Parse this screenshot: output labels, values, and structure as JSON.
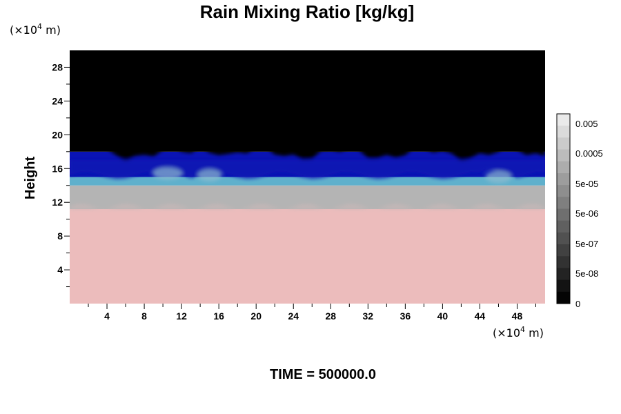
{
  "chart_data": {
    "type": "heatmap",
    "title": "Rain Mixing Ratio [kg/kg]",
    "ylabel": "Height",
    "y_unit": "(×10",
    "x_unit": "(×10",
    "unit_exponent": "4",
    "unit_suffix": " m)",
    "xlim": [
      0,
      51
    ],
    "ylim": [
      0,
      30
    ],
    "x_ticks": [
      "4",
      "8",
      "12",
      "16",
      "20",
      "24",
      "28",
      "32",
      "36",
      "40",
      "44",
      "48"
    ],
    "y_ticks": [
      "4",
      "8",
      "12",
      "16",
      "20",
      "24",
      "28"
    ],
    "x_tick_values": [
      4,
      8,
      12,
      16,
      20,
      24,
      28,
      32,
      36,
      40,
      44,
      48
    ],
    "y_tick_values": [
      4,
      8,
      12,
      16,
      20,
      24,
      28
    ],
    "layers": [
      {
        "region": "lower",
        "y_range": [
          0,
          11.2
        ],
        "color": "#ecbcbc"
      },
      {
        "region": "gray band",
        "y_range": [
          11.2,
          14.0
        ],
        "color": "#b4b4b4"
      },
      {
        "region": "cyan transition",
        "y_range": [
          14.0,
          15.0
        ],
        "color": "#5fb0cc"
      },
      {
        "region": "blue band",
        "y_range": [
          15.0,
          18.0
        ],
        "color": "#0a14b4"
      },
      {
        "region": "upper",
        "y_range": [
          18.0,
          30
        ],
        "color": "#000000"
      }
    ],
    "colorbar": {
      "labels": [
        "0.005",
        "0.0005",
        "5e-05",
        "5e-06",
        "5e-07",
        "5e-08",
        "0"
      ],
      "levels": 16
    },
    "time_label": "TIME = 500000.0"
  }
}
